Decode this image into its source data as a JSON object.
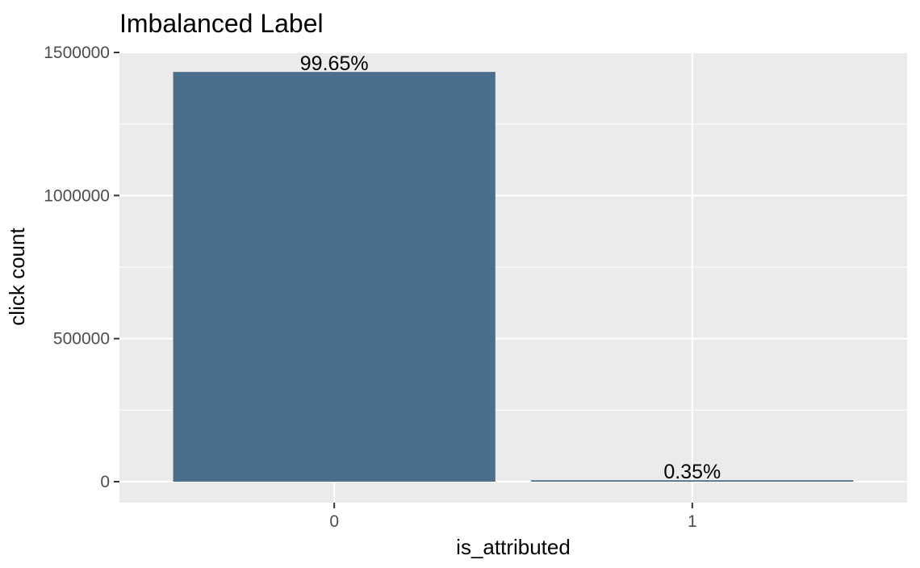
{
  "chart_data": {
    "type": "bar",
    "title": "Imbalanced Label",
    "xlabel": "is_attributed",
    "ylabel": "click count",
    "categories": [
      "0",
      "1"
    ],
    "values": [
      1432000,
      5000
    ],
    "data_labels": [
      "99.65%",
      "0.35%"
    ],
    "ylim": [
      0,
      1500000
    ],
    "y_ticks": [
      0,
      500000,
      1000000,
      1500000
    ],
    "y_tick_labels": [
      "0",
      "500000",
      "1000000",
      "1500000"
    ],
    "grid": true,
    "bar_color": "#4a6f8c",
    "panel_color": "#ebebeb",
    "grid_color": "#ffffff"
  }
}
